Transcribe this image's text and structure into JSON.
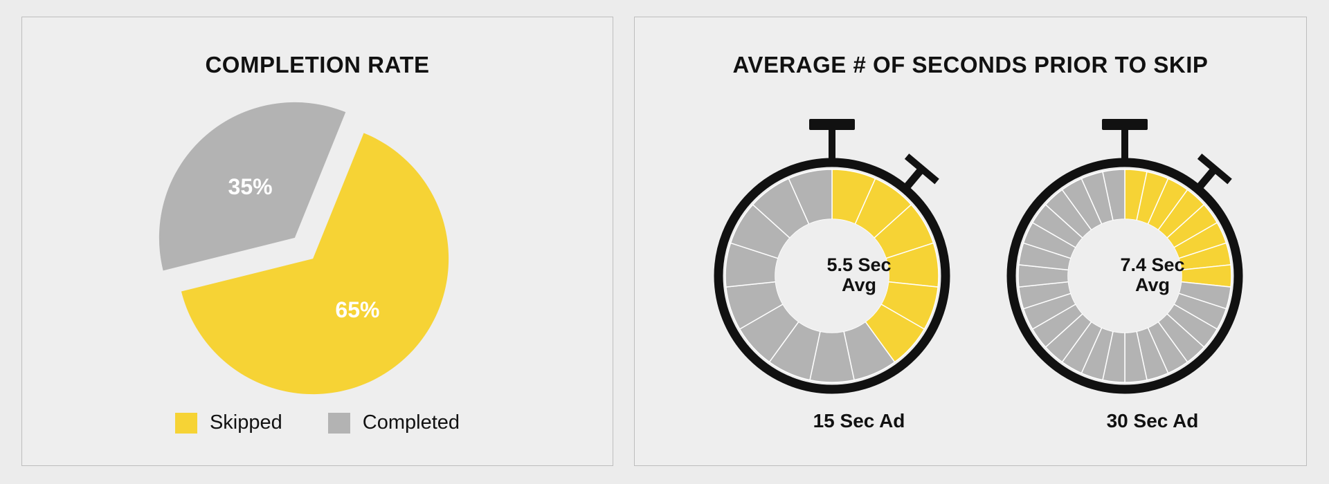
{
  "chart_data": [
    {
      "type": "pie",
      "title": "COMPLETION RATE",
      "categories": [
        "Skipped",
        "Completed"
      ],
      "values": [
        65,
        35
      ],
      "value_labels": [
        "65%",
        "35%"
      ],
      "colors": [
        "#f6d335",
        "#b3b3b3"
      ],
      "exploded": true,
      "legend": {
        "placement": "bottom",
        "items": [
          {
            "label": "Skipped",
            "color": "#f6d335"
          },
          {
            "label": "Completed",
            "color": "#b3b3b3"
          }
        ]
      }
    },
    {
      "type": "gauge",
      "title": "AVERAGE # OF SECONDS PRIOR TO SKIP",
      "gauges": [
        {
          "center_line1": "5.5 Sec",
          "center_line2": "Avg",
          "label": "15 Sec Ad",
          "total_seconds": 15,
          "value": 5.5,
          "filled_segments": 6
        },
        {
          "center_line1": "7.4 Sec",
          "center_line2": "Avg",
          "label": "30 Sec Ad",
          "total_seconds": 30,
          "value": 7.4,
          "filled_segments": 8
        }
      ],
      "colors": {
        "filled": "#f6d335",
        "empty": "#b3b3b3",
        "ring": "#111111"
      }
    }
  ]
}
